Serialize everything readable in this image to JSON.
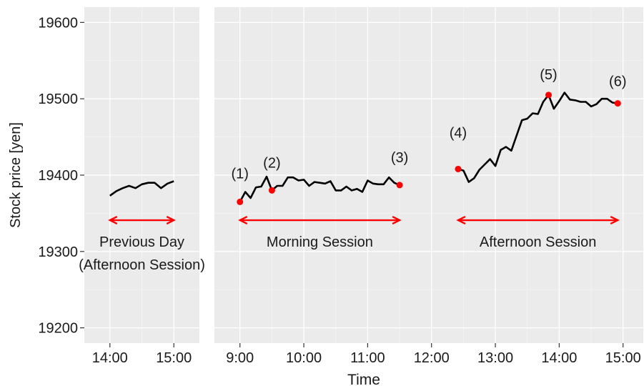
{
  "chart_data": {
    "type": "line",
    "xlabel": "Time",
    "ylabel": "Stock price [yen]",
    "ylim": [
      19180,
      19620
    ],
    "y_ticks": [
      19200,
      19300,
      19400,
      19500,
      19600
    ],
    "grid": true,
    "panels": [
      {
        "x_ticks": [
          "14:00",
          "15:00"
        ],
        "xlim": [
          "13:36",
          "15:24"
        ],
        "series": [
          {
            "x": [
              "14:00",
              "14:06",
              "14:12",
              "14:18",
              "14:24",
              "14:30",
              "14:36",
              "14:42",
              "14:48",
              "14:54",
              "15:00"
            ],
            "values": [
              19373,
              19379,
              19383,
              19386,
              19383,
              19388,
              19390,
              19390,
              19383,
              19389,
              19392
            ]
          }
        ],
        "annotations": [
          {
            "text": "Previous Day",
            "x": "14:30",
            "y": 19313
          },
          {
            "text": "(Afternoon Session)",
            "x": "14:30",
            "y": 19283
          }
        ],
        "range_arrows": [
          {
            "from": "14:00",
            "to": "15:00",
            "y": 19341
          }
        ]
      },
      {
        "x_ticks": [
          "9:00",
          "10:00",
          "11:00",
          "12:00",
          "13:00",
          "14:00",
          "15:00"
        ],
        "xlim": [
          "8:36",
          "15:19"
        ],
        "series": [
          {
            "x": [
              "9:00",
              "9:05",
              "9:10",
              "9:15",
              "9:20",
              "9:25",
              "9:30",
              "9:35",
              "9:40",
              "9:45",
              "9:50",
              "9:55",
              "10:00",
              "10:05",
              "10:10",
              "10:15",
              "10:20",
              "10:25",
              "10:30",
              "10:35",
              "10:40",
              "10:45",
              "10:50",
              "10:55",
              "11:00",
              "11:05",
              "11:10",
              "11:15",
              "11:20",
              "11:25",
              "11:30"
            ],
            "values": [
              19365,
              19378,
              19370,
              19384,
              19385,
              19398,
              19380,
              19386,
              19386,
              19397,
              19397,
              19393,
              19394,
              19386,
              19391,
              19390,
              19389,
              19392,
              19380,
              19380,
              19385,
              19380,
              19382,
              19378,
              19393,
              19389,
              19388,
              19388,
              19397,
              19390,
              19387
            ]
          },
          {
            "x": [
              "12:25",
              "12:30",
              "12:35",
              "12:40",
              "12:45",
              "12:50",
              "12:55",
              "13:00",
              "13:05",
              "13:10",
              "13:15",
              "13:20",
              "13:25",
              "13:30",
              "13:35",
              "13:40",
              "13:45",
              "13:50",
              "13:55",
              "14:00",
              "14:05",
              "14:10",
              "14:15",
              "14:20",
              "14:25",
              "14:30",
              "14:35",
              "14:40",
              "14:45",
              "14:50",
              "14:55"
            ],
            "values": [
              19408,
              19406,
              19391,
              19396,
              19407,
              19414,
              19421,
              19412,
              19433,
              19437,
              19432,
              19452,
              19472,
              19474,
              19481,
              19480,
              19496,
              19505,
              19487,
              19497,
              19508,
              19499,
              19498,
              19496,
              19496,
              19490,
              19493,
              19500,
              19500,
              19495,
              19494
            ]
          }
        ],
        "points": [
          {
            "label": "(1)",
            "x": "9:00",
            "y": 19365
          },
          {
            "label": "(2)",
            "x": "9:30",
            "y": 19380
          },
          {
            "label": "(3)",
            "x": "11:30",
            "y": 19387
          },
          {
            "label": "(4)",
            "x": "12:25",
            "y": 19408
          },
          {
            "label": "(5)",
            "x": "13:50",
            "y": 19505
          },
          {
            "label": "(6)",
            "x": "14:55",
            "y": 19494
          }
        ],
        "annotations": [
          {
            "text": "Morning Session",
            "x": "10:15",
            "y": 19313
          },
          {
            "text": "Afternoon Session",
            "x": "13:40",
            "y": 19313
          }
        ],
        "range_arrows": [
          {
            "from": "9:00",
            "to": "11:30",
            "y": 19341
          },
          {
            "from": "12:25",
            "to": "14:55",
            "y": 19341
          }
        ]
      }
    ]
  },
  "colors": {
    "panel_bg": "#ebebeb",
    "grid_major": "#ffffff",
    "grid_minor": "#f4f4f4",
    "line": "#000000",
    "highlight": "#ff0000",
    "text": "#1a1a1a"
  }
}
